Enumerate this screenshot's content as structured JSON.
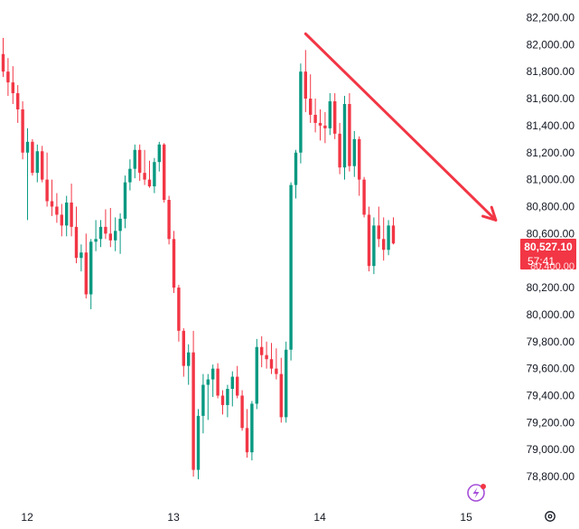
{
  "chart_data": {
    "type": "candlestick",
    "title": "",
    "xlabel": "",
    "ylabel": "",
    "ylim": [
      78700,
      82250
    ],
    "y_ticks": [
      "82,200.00",
      "82,000.00",
      "81,800.00",
      "81,600.00",
      "81,400.00",
      "81,200.00",
      "81,000.00",
      "80,800.00",
      "80,600.00",
      "80,400.00",
      "80,200.00",
      "80,000.00",
      "79,800.00",
      "79,600.00",
      "79,400.00",
      "79,200.00",
      "79,000.00",
      "78,800.00"
    ],
    "y_tick_values": [
      82200,
      82000,
      81800,
      81600,
      81400,
      81200,
      81000,
      80800,
      80600,
      80400,
      80200,
      80000,
      79800,
      79600,
      79400,
      79200,
      79000,
      78800
    ],
    "x_ticks": [
      {
        "label": "12",
        "index": 4
      },
      {
        "label": "13",
        "index": 34
      },
      {
        "label": "14",
        "index": 64
      },
      {
        "label": "15",
        "index": 94
      }
    ],
    "up_color": "#089981",
    "down_color": "#f23645",
    "grid": false,
    "candles": [
      [
        81930,
        82050,
        81760,
        81800
      ],
      [
        81800,
        81900,
        81620,
        81720
      ],
      [
        81720,
        81840,
        81560,
        81640
      ],
      [
        81640,
        81700,
        81420,
        81520
      ],
      [
        81520,
        81580,
        81150,
        81200
      ],
      [
        81200,
        81380,
        80700,
        81280
      ],
      [
        81280,
        81300,
        81030,
        81050
      ],
      [
        81050,
        81260,
        80980,
        81210
      ],
      [
        81210,
        81250,
        80980,
        81000
      ],
      [
        81000,
        81200,
        80800,
        80840
      ],
      [
        80840,
        81000,
        80730,
        80800
      ],
      [
        80800,
        80900,
        80680,
        80740
      ],
      [
        80740,
        80820,
        80580,
        80660
      ],
      [
        80660,
        80880,
        80580,
        80830
      ],
      [
        80830,
        80970,
        80580,
        80650
      ],
      [
        80650,
        80800,
        80380,
        80420
      ],
      [
        80420,
        80520,
        80320,
        80460
      ],
      [
        80460,
        80600,
        80120,
        80150
      ],
      [
        80150,
        80560,
        80040,
        80540
      ],
      [
        80540,
        80700,
        80470,
        80560
      ],
      [
        80560,
        80700,
        80500,
        80650
      ],
      [
        80650,
        80780,
        80560,
        80600
      ],
      [
        80600,
        80790,
        80500,
        80550
      ],
      [
        80550,
        80720,
        80470,
        80620
      ],
      [
        80620,
        80750,
        80450,
        80710
      ],
      [
        80710,
        81030,
        80640,
        80980
      ],
      [
        80980,
        81150,
        80920,
        81080
      ],
      [
        81080,
        81260,
        81010,
        81220
      ],
      [
        81220,
        81260,
        80990,
        81050
      ],
      [
        81050,
        81220,
        80960,
        81000
      ],
      [
        81000,
        81140,
        80940,
        80950
      ],
      [
        80950,
        81160,
        80900,
        81130
      ],
      [
        81130,
        81280,
        81060,
        81260
      ],
      [
        81260,
        81270,
        80830,
        80850
      ],
      [
        80850,
        80880,
        80520,
        80560
      ],
      [
        80560,
        80620,
        80160,
        80200
      ],
      [
        80200,
        80220,
        79800,
        79880
      ],
      [
        79880,
        79900,
        79540,
        79620
      ],
      [
        79620,
        79780,
        79480,
        79720
      ],
      [
        79720,
        79880,
        78800,
        78850
      ],
      [
        78850,
        79300,
        78780,
        79250
      ],
      [
        79250,
        79560,
        79120,
        79480
      ],
      [
        79480,
        79560,
        79220,
        79520
      ],
      [
        79520,
        79630,
        79390,
        79600
      ],
      [
        79600,
        79640,
        79380,
        79400
      ],
      [
        79400,
        79440,
        79260,
        79330
      ],
      [
        79330,
        79480,
        79240,
        79450
      ],
      [
        79450,
        79580,
        79320,
        79540
      ],
      [
        79540,
        79620,
        79380,
        79400
      ],
      [
        79400,
        79440,
        79140,
        79160
      ],
      [
        79160,
        79300,
        78940,
        78980
      ],
      [
        78980,
        79360,
        78920,
        79340
      ],
      [
        79340,
        79820,
        79300,
        79760
      ],
      [
        79760,
        79840,
        79610,
        79700
      ],
      [
        79700,
        79800,
        79600,
        79670
      ],
      [
        79670,
        79790,
        79560,
        79600
      ],
      [
        79600,
        79750,
        79520,
        79560
      ],
      [
        79560,
        79680,
        79200,
        79240
      ],
      [
        79240,
        79800,
        79200,
        79740
      ],
      [
        79740,
        80980,
        79660,
        80960
      ],
      [
        80960,
        81220,
        80860,
        81200
      ],
      [
        81200,
        81860,
        81120,
        81800
      ],
      [
        81800,
        81960,
        81500,
        81600
      ],
      [
        81600,
        81780,
        81420,
        81480
      ],
      [
        81480,
        81600,
        81350,
        81420
      ],
      [
        81420,
        81520,
        81290,
        81400
      ],
      [
        81400,
        81500,
        81270,
        81380
      ],
      [
        81380,
        81640,
        81330,
        81580
      ],
      [
        81580,
        81640,
        81300,
        81340
      ],
      [
        81340,
        81420,
        81040,
        81090
      ],
      [
        81090,
        81620,
        81000,
        81560
      ],
      [
        81560,
        81640,
        81060,
        81100
      ],
      [
        81100,
        81360,
        81020,
        81300
      ],
      [
        81300,
        81320,
        80880,
        81000
      ],
      [
        81000,
        81020,
        80720,
        80740
      ],
      [
        80740,
        80800,
        80320,
        80360
      ],
      [
        80360,
        80720,
        80300,
        80660
      ],
      [
        80660,
        80800,
        80500,
        80560
      ],
      [
        80560,
        80720,
        80400,
        80480
      ],
      [
        80480,
        80700,
        80440,
        80660
      ],
      [
        80660,
        80720,
        80520,
        80527
      ]
    ],
    "trend_line": {
      "color": "#f23645",
      "from": {
        "index": 62,
        "value": 82080
      },
      "to": {
        "index": 101,
        "value": 80700
      }
    },
    "last_price": {
      "label": "80,527.10",
      "countdown": "57:41",
      "obscured_label": "80,400.00",
      "value": 80527.1,
      "color": "#f23645"
    }
  }
}
